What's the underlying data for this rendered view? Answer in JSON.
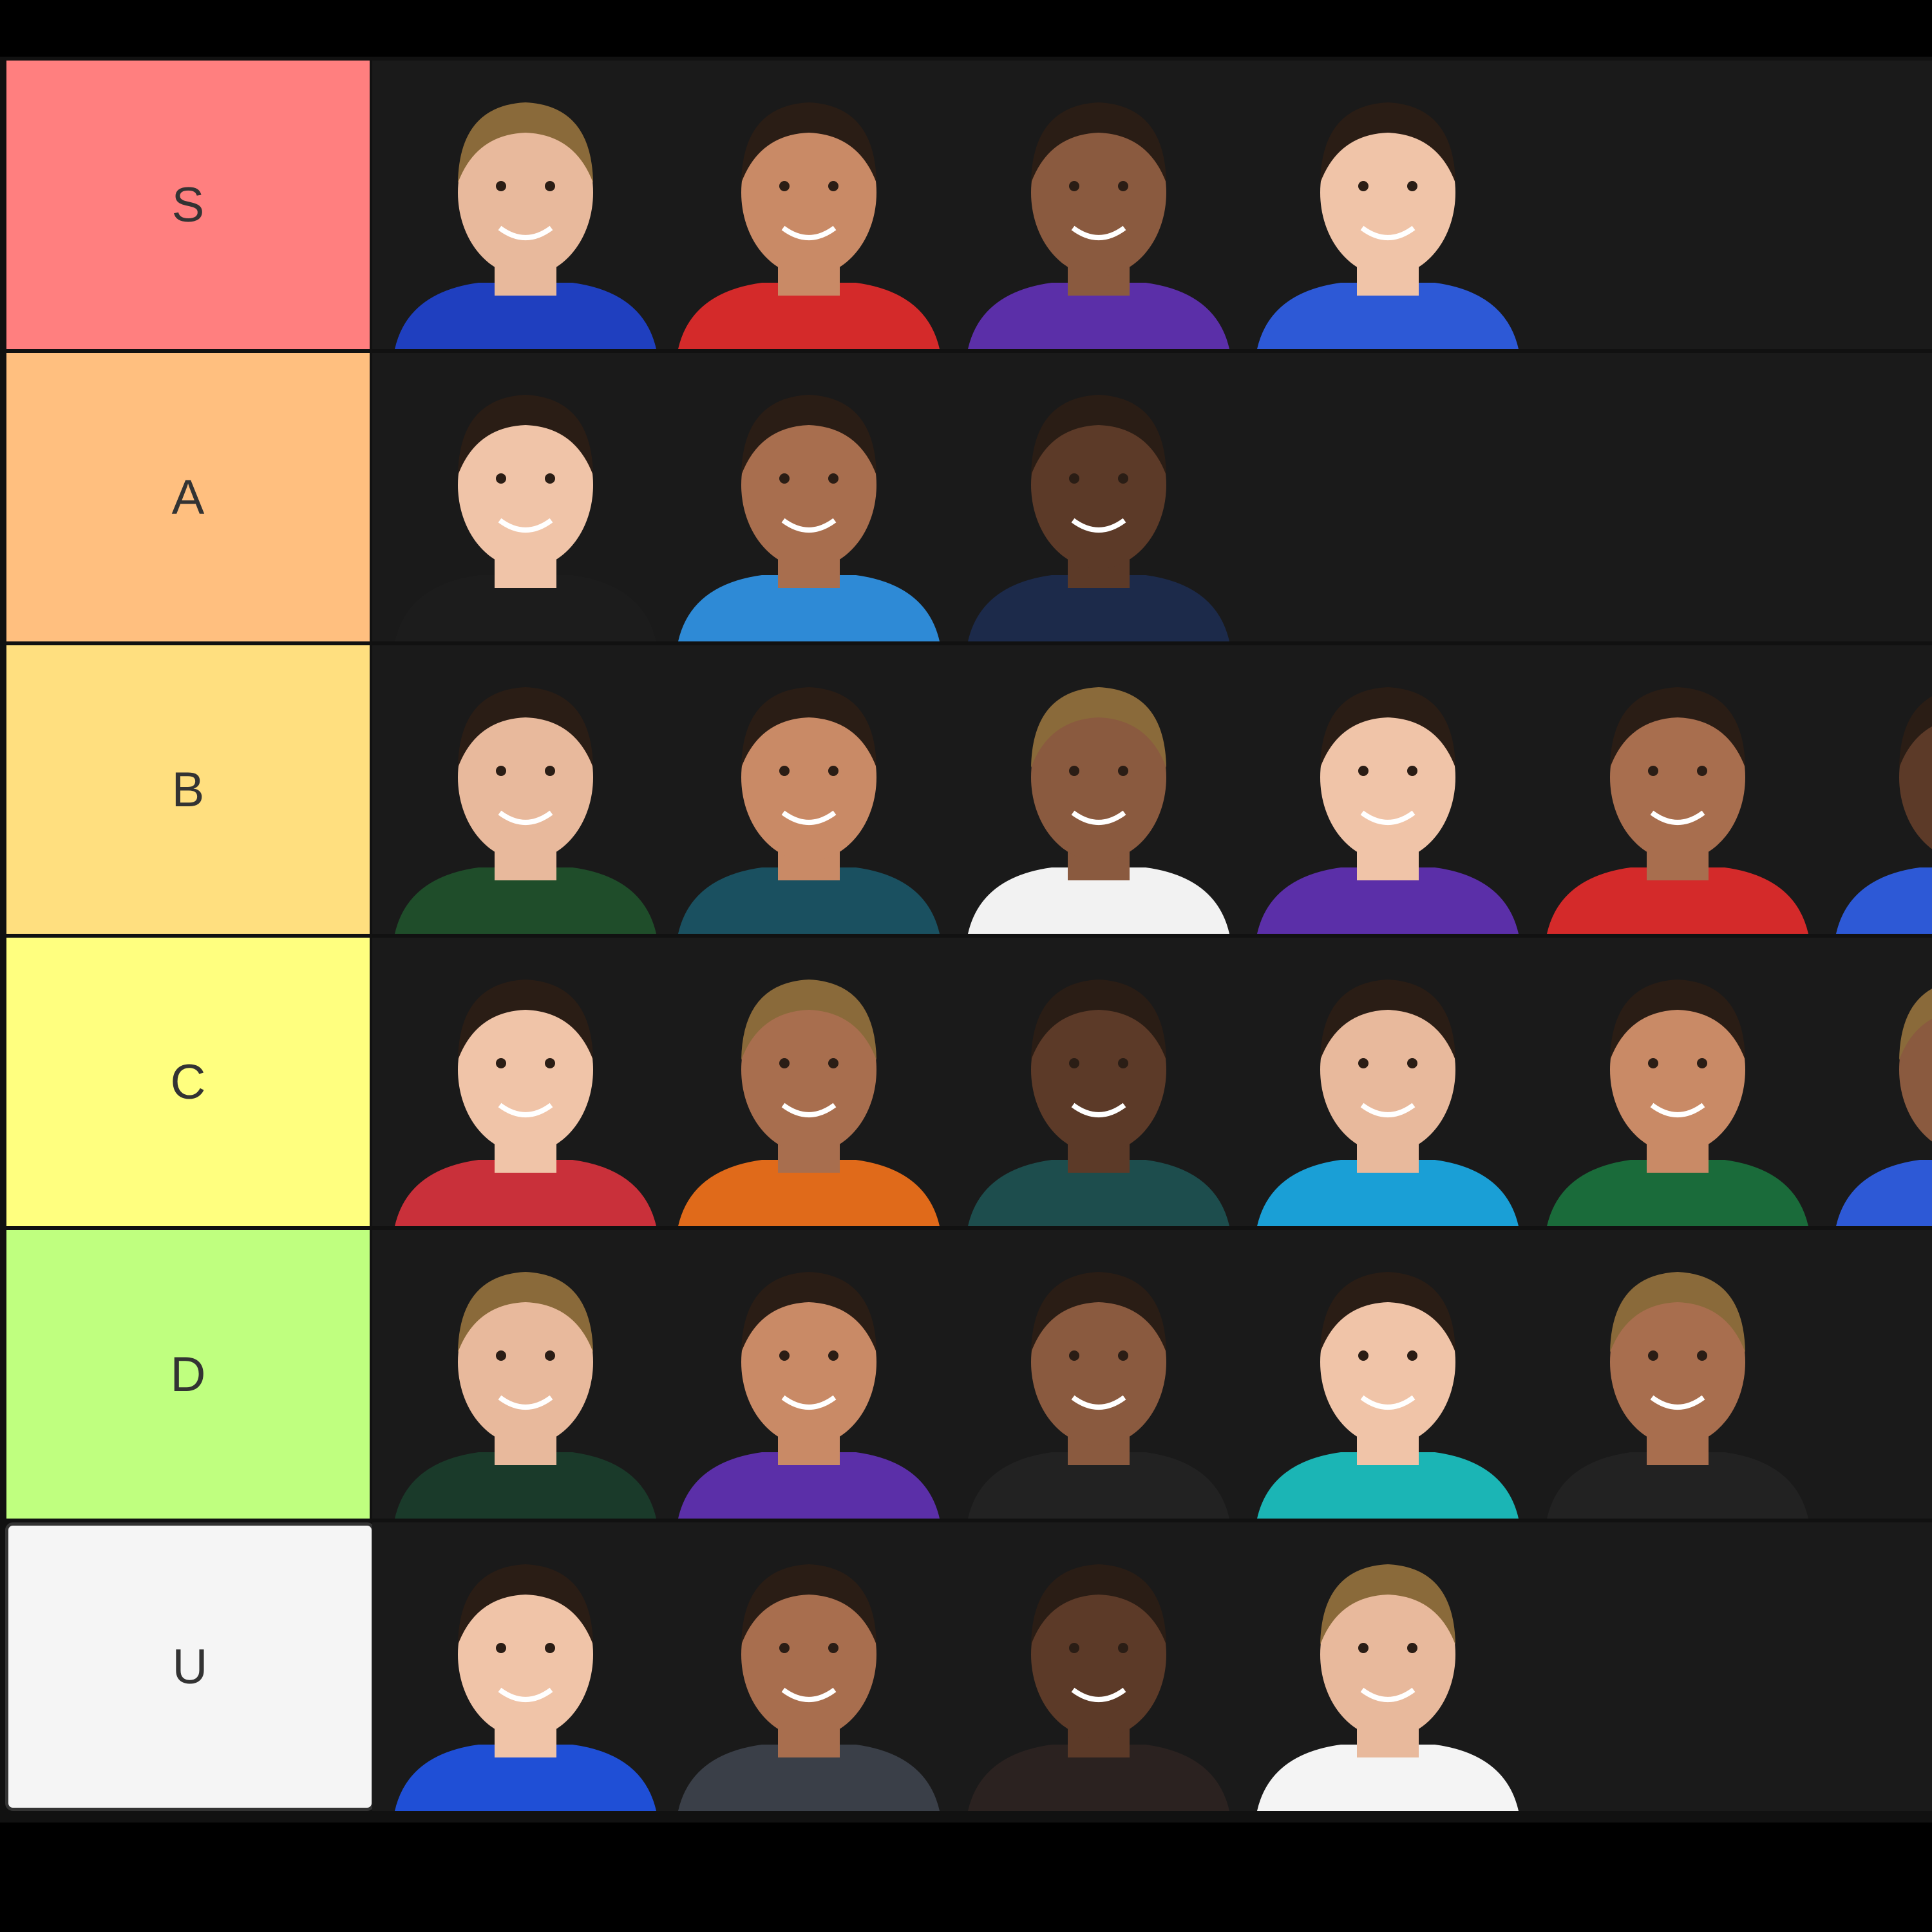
{
  "tiers": [
    {
      "label": "S",
      "color": "#ff7f7f"
    },
    {
      "label": "A",
      "color": "#ffbf7f"
    },
    {
      "label": "B",
      "color": "#ffdf7f"
    },
    {
      "label": "C",
      "color": "#ffff7f"
    },
    {
      "label": "D",
      "color": "#bfff7f"
    },
    {
      "label": "U",
      "color": "#f5f5f5"
    }
  ]
}
